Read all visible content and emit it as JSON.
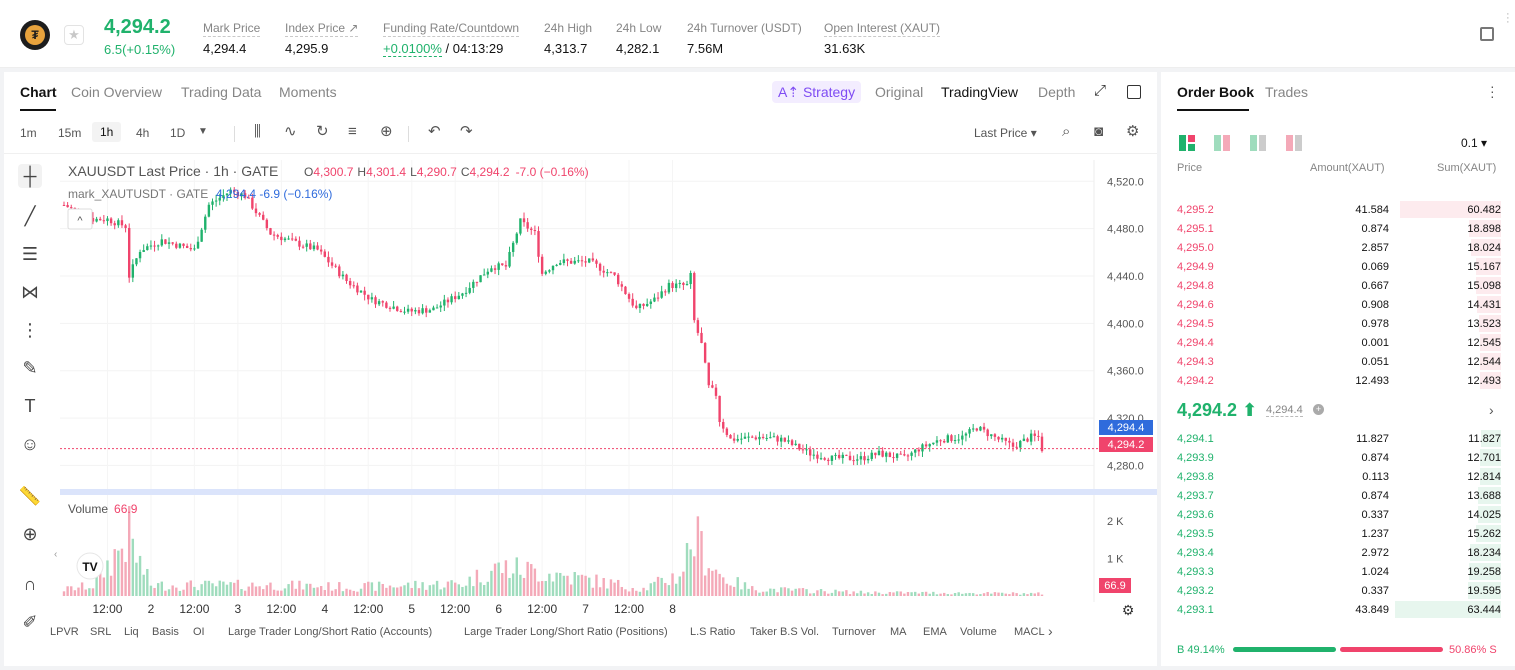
{
  "header": {
    "last_price": "4,294.2",
    "change": "6.5(+0.15%)",
    "stats": [
      {
        "label": "Mark Price",
        "value": "4,294.4"
      },
      {
        "label": "Index Price ↗",
        "value": "4,295.9"
      },
      {
        "label": "Funding Rate/Countdown",
        "value_green": "+0.0100%",
        "value": " / 04:13:29"
      },
      {
        "label": "24h High",
        "value": "4,313.7"
      },
      {
        "label": "24h Low",
        "value": "4,282.1"
      },
      {
        "label": "24h Turnover (USDT)",
        "value": "7.56M"
      },
      {
        "label": "Open Interest (XAUT)",
        "value": "31.63K"
      }
    ]
  },
  "chart_tabs": [
    "Chart",
    "Coin Overview",
    "Trading Data",
    "Moments"
  ],
  "view_tabs": {
    "strategy": "A⇡ Strategy",
    "original": "Original",
    "tradingview": "TradingView",
    "depth": "Depth"
  },
  "timeframes": [
    "1m",
    "15m",
    "1h",
    "4h",
    "1D"
  ],
  "active_timeframe": "1h",
  "last_price_select": "Last Price",
  "chart": {
    "legend_main": "XAUUSDT Last Price · 1h · GATE",
    "legend_ohlc": {
      "o": "4,300.7",
      "h": "4,301.4",
      "l": "4,290.7",
      "c": "4,294.2",
      "chg": "-7.0 (−0.16%)"
    },
    "legend_mark": "mark_XAUTUSDT · GATE",
    "legend_mark_val": "4,294.4  -6.9 (−0.16%)",
    "volume_label": "Volume",
    "volume_value": "66.9",
    "volume_tag": "66.9",
    "mark_tag": "4,294.4",
    "last_tag": "4,294.2",
    "price_axis": [
      "4,520.0",
      "4,480.0",
      "4,440.0",
      "4,400.0",
      "4,360.0",
      "4,320.0",
      "4,280.0"
    ],
    "volume_axis": [
      "2 K",
      "1 K"
    ],
    "time_axis": [
      "12:00",
      "2",
      "12:00",
      "3",
      "12:00",
      "4",
      "12:00",
      "5",
      "12:00",
      "6",
      "12:00",
      "7",
      "12:00",
      "8"
    ]
  },
  "chart_data": {
    "type": "candlestick",
    "title": "XAUUSDT Last Price · 1h · GATE",
    "ylim": [
      4266,
      4538
    ],
    "yticks": [
      4520,
      4480,
      4440,
      4400,
      4360,
      4320,
      4280
    ],
    "x_labels": [
      "12:00",
      "2",
      "12:00",
      "3",
      "12:00",
      "4",
      "12:00",
      "5",
      "12:00",
      "6",
      "12:00",
      "7",
      "12:00",
      "8"
    ],
    "close_anchors": [
      [
        0,
        4500
      ],
      [
        8,
        4488
      ],
      [
        12,
        4488
      ],
      [
        17,
        4482
      ],
      [
        18,
        4440
      ],
      [
        21,
        4462
      ],
      [
        27,
        4470
      ],
      [
        36,
        4462
      ],
      [
        40,
        4500
      ],
      [
        46,
        4512
      ],
      [
        50,
        4508
      ],
      [
        57,
        4476
      ],
      [
        64,
        4468
      ],
      [
        70,
        4462
      ],
      [
        78,
        4436
      ],
      [
        85,
        4420
      ],
      [
        95,
        4410
      ],
      [
        102,
        4412
      ],
      [
        110,
        4426
      ],
      [
        118,
        4448
      ],
      [
        122,
        4448
      ],
      [
        126,
        4486
      ],
      [
        130,
        4476
      ],
      [
        132,
        4442
      ],
      [
        136,
        4452
      ],
      [
        145,
        4452
      ],
      [
        152,
        4440
      ],
      [
        158,
        4412
      ],
      [
        163,
        4420
      ],
      [
        167,
        4432
      ],
      [
        172,
        4432
      ],
      [
        173,
        4440
      ],
      [
        174,
        4402
      ],
      [
        176,
        4382
      ],
      [
        178,
        4346
      ],
      [
        180,
        4340
      ],
      [
        181,
        4318
      ],
      [
        184,
        4302
      ],
      [
        192,
        4304
      ],
      [
        198,
        4302
      ],
      [
        206,
        4290
      ],
      [
        212,
        4286
      ],
      [
        220,
        4286
      ],
      [
        225,
        4290
      ],
      [
        232,
        4286
      ],
      [
        236,
        4294
      ],
      [
        242,
        4302
      ],
      [
        248,
        4304
      ],
      [
        252,
        4312
      ],
      [
        258,
        4302
      ],
      [
        262,
        4296
      ],
      [
        267,
        4304
      ],
      [
        269,
        4304
      ],
      [
        270,
        4294
      ]
    ],
    "last_price": 4294.2,
    "mark_price": 4294.4,
    "volume_ylim": [
      0,
      2400
    ],
    "volume_anchors": [
      [
        0,
        180
      ],
      [
        8,
        300
      ],
      [
        18,
        1700
      ],
      [
        20,
        1100
      ],
      [
        24,
        300
      ],
      [
        60,
        300
      ],
      [
        80,
        250
      ],
      [
        110,
        350
      ],
      [
        120,
        800
      ],
      [
        130,
        700
      ],
      [
        160,
        200
      ],
      [
        170,
        600
      ],
      [
        174,
        1700
      ],
      [
        178,
        1000
      ],
      [
        182,
        500
      ],
      [
        190,
        200
      ],
      [
        220,
        100
      ],
      [
        270,
        66.9
      ]
    ]
  },
  "bottom_indicators": [
    "LPVR",
    "SRL",
    "Liq",
    "Basis",
    "OI",
    "Large Trader Long/Short Ratio (Accounts)",
    "Large Trader Long/Short Ratio (Positions)",
    "L.S Ratio",
    "Taker B.S Vol.",
    "Turnover",
    "MA",
    "EMA",
    "Volume",
    "MACL"
  ],
  "orderbook": {
    "tabs": [
      "Order Book",
      "Trades"
    ],
    "precision": "0.1 ▾",
    "headers": {
      "price": "Price",
      "amount": "Amount(XAUT)",
      "sum": "Sum(XAUT)"
    },
    "asks": [
      {
        "price": "4,295.2",
        "amount": "41.584",
        "sum": "60.482",
        "fill": 0.95
      },
      {
        "price": "4,295.1",
        "amount": "0.874",
        "sum": "18.898",
        "fill": 0.3
      },
      {
        "price": "4,295.0",
        "amount": "2.857",
        "sum": "18.024",
        "fill": 0.285
      },
      {
        "price": "4,294.9",
        "amount": "0.069",
        "sum": "15.167",
        "fill": 0.24
      },
      {
        "price": "4,294.8",
        "amount": "0.667",
        "sum": "15.098",
        "fill": 0.24
      },
      {
        "price": "4,294.6",
        "amount": "0.908",
        "sum": "14.431",
        "fill": 0.23
      },
      {
        "price": "4,294.5",
        "amount": "0.978",
        "sum": "13.523",
        "fill": 0.21
      },
      {
        "price": "4,294.4",
        "amount": "0.001",
        "sum": "12.545",
        "fill": 0.2
      },
      {
        "price": "4,294.3",
        "amount": "0.051",
        "sum": "12.544",
        "fill": 0.2
      },
      {
        "price": "4,294.2",
        "amount": "12.493",
        "sum": "12.493",
        "fill": 0.2
      }
    ],
    "mid_price": "4,294.2 ⬆",
    "mid_mark": "4,294.4",
    "bids": [
      {
        "price": "4,294.1",
        "amount": "11.827",
        "sum": "11.827",
        "fill": 0.19
      },
      {
        "price": "4,293.9",
        "amount": "0.874",
        "sum": "12.701",
        "fill": 0.2
      },
      {
        "price": "4,293.8",
        "amount": "0.113",
        "sum": "12.814",
        "fill": 0.2
      },
      {
        "price": "4,293.7",
        "amount": "0.874",
        "sum": "13.688",
        "fill": 0.22
      },
      {
        "price": "4,293.6",
        "amount": "0.337",
        "sum": "14.025",
        "fill": 0.22
      },
      {
        "price": "4,293.5",
        "amount": "1.237",
        "sum": "15.262",
        "fill": 0.24
      },
      {
        "price": "4,293.4",
        "amount": "2.972",
        "sum": "18.234",
        "fill": 0.29
      },
      {
        "price": "4,293.3",
        "amount": "1.024",
        "sum": "19.258",
        "fill": 0.3
      },
      {
        "price": "4,293.2",
        "amount": "0.337",
        "sum": "19.595",
        "fill": 0.31
      },
      {
        "price": "4,293.1",
        "amount": "43.849",
        "sum": "63.444",
        "fill": 1.0
      }
    ],
    "buy_ratio": "B 49.14%",
    "sell_ratio": "50.86% S",
    "buy_fraction": 0.4914
  },
  "colors": {
    "up": "#20b26c",
    "down": "#f0446c",
    "up_vol": "#9fdcbd",
    "down_vol": "#f4a9b8",
    "strategy": "#7f4cf3",
    "mark_tag": "#2f6bdc"
  }
}
